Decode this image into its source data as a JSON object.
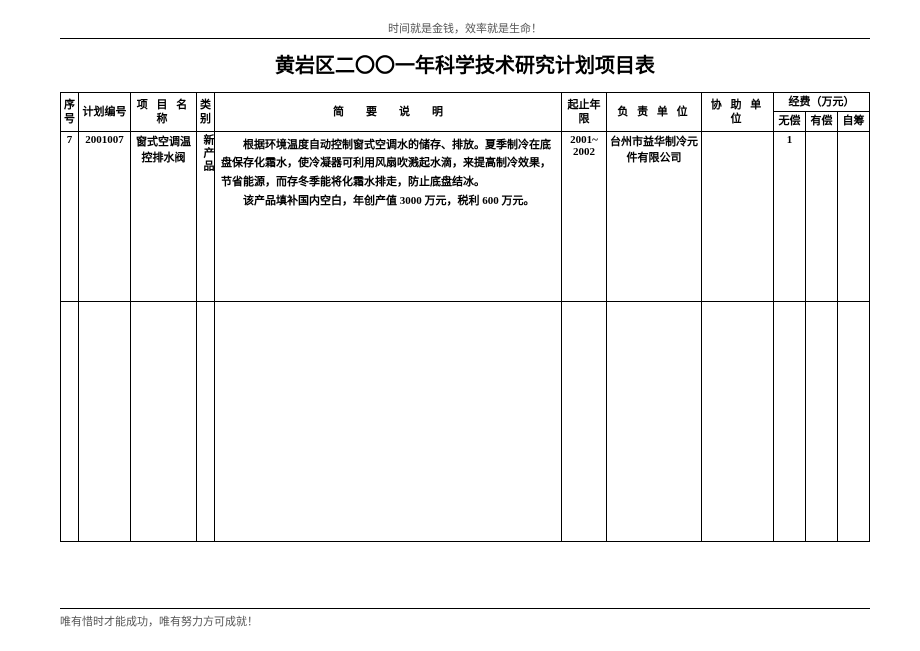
{
  "header_note": "时间就是金钱，效率就是生命！",
  "title": "黄岩区二〇〇一年科学技术研究计划项目表",
  "columns": {
    "seq": "序号",
    "plan_no": "计划编号",
    "proj_name": "项 目 名 称",
    "category": "类别",
    "desc": "简　　要　　说　　明",
    "year": "起止年限",
    "unit": "负 责 单 位",
    "help_unit": "协 助 单 位",
    "funds_group": "经费（万元）",
    "fund_free": "无偿",
    "fund_paid": "有偿",
    "fund_self": "自筹"
  },
  "row": {
    "seq": "7",
    "plan_no": "2001007",
    "proj_name": "窗式空调温控排水阀",
    "category": "新产品",
    "desc_p1": "根据环境温度自动控制窗式空调水的储存、排放。夏季制冷在底盘保存化霜水，使冷凝器可利用风扇吹溅起水滴，来提高制冷效果，节省能源，而存冬季能将化霜水排走，防止底盘结冰。",
    "desc_p2": "该产品填补国内空白，年创产值 3000 万元，税利 600 万元。",
    "year": "2001~ 2002",
    "unit": "台州市益华制冷元件有限公司",
    "help_unit": "",
    "fund_free": "1",
    "fund_paid": "",
    "fund_self": ""
  },
  "footer_note": "唯有惜时才能成功，唯有努力方可成就！"
}
